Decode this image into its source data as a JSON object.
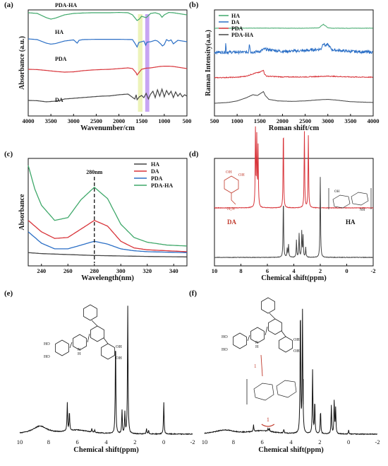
{
  "figure": {
    "panels": [
      "(a)",
      "(b)",
      "(c)",
      "(d)",
      "(e)",
      "(f)"
    ]
  },
  "chart_data": [
    {
      "id": "a",
      "panel_label": "(a)",
      "type": "line",
      "xlabel": "Wavenumber/cm",
      "ylabel": "Absorbance (a.u.)",
      "xlim": [
        4000,
        500
      ],
      "xticks": [
        4000,
        3500,
        3000,
        2500,
        2000,
        1500,
        1000,
        500
      ],
      "highlight_bands": [
        {
          "from": 1580,
          "to": 1480,
          "color": "#e8f0a8"
        },
        {
          "from": 1420,
          "to": 1330,
          "color": "#b98ef0"
        }
      ],
      "series": [
        {
          "name": "PDA-HA",
          "color": "#3fa86a",
          "offset": 3.0,
          "x": [
            4000,
            3800,
            3600,
            3500,
            3400,
            3200,
            3000,
            2800,
            2600,
            2400,
            2200,
            2000,
            1800,
            1700,
            1650,
            1600,
            1550,
            1500,
            1450,
            1400,
            1300,
            1200,
            1100,
            1050,
            1000,
            900,
            800,
            700,
            600,
            500
          ],
          "y": [
            0.6,
            0.55,
            0.25,
            0.15,
            0.22,
            0.45,
            0.55,
            0.58,
            0.6,
            0.6,
            0.6,
            0.62,
            0.6,
            0.45,
            0.25,
            0.05,
            0.15,
            0.35,
            0.3,
            0.25,
            0.55,
            0.6,
            0.5,
            0.28,
            0.45,
            0.62,
            0.6,
            0.55,
            0.5,
            0.45
          ]
        },
        {
          "name": "HA",
          "color": "#2b6fc6",
          "offset": 2.0,
          "x": [
            4000,
            3800,
            3600,
            3500,
            3400,
            3200,
            3000,
            2920,
            2880,
            2800,
            2500,
            2000,
            1700,
            1640,
            1600,
            1560,
            1500,
            1450,
            1410,
            1380,
            1300,
            1200,
            1150,
            1080,
            1040,
            1000,
            950,
            900,
            850,
            800,
            700,
            600,
            500
          ],
          "y": [
            0.65,
            0.6,
            0.35,
            0.28,
            0.32,
            0.5,
            0.58,
            0.35,
            0.55,
            0.6,
            0.62,
            0.62,
            0.6,
            0.3,
            0.08,
            0.4,
            0.45,
            0.5,
            0.2,
            0.42,
            0.45,
            0.55,
            0.5,
            0.3,
            0.15,
            0.25,
            0.6,
            0.5,
            0.58,
            0.3,
            0.55,
            0.5,
            0.45
          ]
        },
        {
          "name": "PDA",
          "color": "#d8343a",
          "offset": 1.0,
          "x": [
            4000,
            3800,
            3600,
            3400,
            3200,
            3000,
            2800,
            2600,
            2400,
            2200,
            2000,
            1800,
            1700,
            1620,
            1600,
            1550,
            1500,
            1400,
            1300,
            1200,
            1100,
            1000,
            900,
            800,
            700,
            600,
            500
          ],
          "y": [
            0.4,
            0.38,
            0.32,
            0.25,
            0.2,
            0.22,
            0.3,
            0.35,
            0.38,
            0.4,
            0.45,
            0.5,
            0.45,
            0.15,
            0.0,
            0.2,
            0.4,
            0.48,
            0.5,
            0.55,
            0.6,
            0.62,
            0.62,
            0.6,
            0.55,
            0.5,
            0.45
          ]
        },
        {
          "name": "DA",
          "color": "#444444",
          "offset": 0.0,
          "x": [
            4000,
            3800,
            3600,
            3400,
            3300,
            3200,
            3000,
            2800,
            2600,
            2400,
            2200,
            2000,
            1800,
            1650,
            1620,
            1600,
            1550,
            1500,
            1450,
            1400,
            1350,
            1300,
            1250,
            1200,
            1150,
            1100,
            1050,
            1000,
            950,
            900,
            850,
            800,
            750,
            700,
            650,
            600,
            550,
            500
          ],
          "y": [
            0.1,
            0.08,
            0.0,
            0.05,
            0.1,
            0.2,
            0.25,
            0.3,
            0.35,
            0.4,
            0.42,
            0.5,
            0.55,
            0.2,
            0.5,
            0.15,
            0.35,
            0.45,
            0.3,
            0.6,
            0.2,
            0.55,
            0.75,
            0.3,
            0.85,
            0.4,
            0.9,
            0.35,
            0.8,
            0.5,
            0.75,
            0.3,
            0.7,
            0.4,
            0.6,
            0.35,
            0.5,
            0.4
          ]
        }
      ],
      "series_labels": [
        "PDA-HA",
        "HA",
        "PDA",
        "DA"
      ]
    },
    {
      "id": "b",
      "panel_label": "(b)",
      "type": "line",
      "xlabel": "Roman shift/cm",
      "ylabel": "Raman Intensity(a.u.)",
      "xlim": [
        500,
        4000
      ],
      "xticks": [
        500,
        1000,
        1500,
        2000,
        2500,
        3000,
        3500,
        4000
      ],
      "legend": {
        "placement": "top-left",
        "entries": [
          "HA",
          "DA",
          "PDA",
          "PDA-HA"
        ]
      },
      "series": [
        {
          "name": "HA",
          "color": "#3fa86a",
          "offset": 3.0,
          "noise": 0.02,
          "x": [
            500,
            1000,
            1500,
            2000,
            2500,
            2800,
            2900,
            2950,
            3000,
            3100,
            3500,
            4000
          ],
          "y": [
            0.05,
            0.05,
            0.06,
            0.05,
            0.05,
            0.07,
            0.3,
            0.2,
            0.08,
            0.05,
            0.05,
            0.05
          ]
        },
        {
          "name": "DA",
          "color": "#2b6fc6",
          "offset": 2.0,
          "noise": 0.18,
          "x": [
            500,
            740,
            750,
            760,
            1000,
            1250,
            1270,
            1300,
            1500,
            1600,
            2000,
            2500,
            2850,
            2900,
            2950,
            3000,
            3050,
            3100,
            3500,
            4000
          ],
          "y": [
            0.1,
            0.1,
            0.8,
            0.1,
            0.1,
            0.1,
            0.7,
            0.1,
            0.15,
            0.3,
            0.15,
            0.2,
            0.3,
            0.7,
            0.5,
            0.6,
            0.4,
            0.25,
            0.15,
            0.1
          ]
        },
        {
          "name": "PDA",
          "color": "#d8343a",
          "offset": 1.0,
          "noise": 0.05,
          "x": [
            500,
            1000,
            1200,
            1350,
            1400,
            1500,
            1580,
            1600,
            1650,
            2000,
            2500,
            3000,
            3500,
            4000
          ],
          "y": [
            0.05,
            0.08,
            0.15,
            0.3,
            0.35,
            0.4,
            0.55,
            0.3,
            0.15,
            0.1,
            0.1,
            0.15,
            0.1,
            0.08
          ]
        },
        {
          "name": "PDA-HA",
          "color": "#444444",
          "offset": 0.0,
          "noise": 0.01,
          "x": [
            500,
            800,
            1000,
            1200,
            1350,
            1400,
            1450,
            1500,
            1580,
            1620,
            1700,
            1900,
            2200,
            2500,
            2800,
            3000,
            3200,
            3500,
            4000
          ],
          "y": [
            0.0,
            0.05,
            0.15,
            0.35,
            0.55,
            0.52,
            0.5,
            0.6,
            0.75,
            0.5,
            0.25,
            0.15,
            0.12,
            0.15,
            0.22,
            0.25,
            0.2,
            0.1,
            0.05
          ]
        }
      ]
    },
    {
      "id": "c",
      "panel_label": "(c)",
      "type": "line",
      "xlabel": "Wavelength(nm)",
      "ylabel": "Absorbance",
      "xlim": [
        230,
        350
      ],
      "xticks": [
        240,
        260,
        280,
        300,
        320,
        340
      ],
      "annotation": "280nm",
      "annotation_x": 280,
      "legend": {
        "placement": "top-right",
        "entries": [
          "HA",
          "DA",
          "PDA",
          "PDA-HA"
        ]
      },
      "series": [
        {
          "name": "HA",
          "color": "#444444",
          "x": [
            230,
            240,
            260,
            280,
            300,
            320,
            350
          ],
          "y": [
            0.08,
            0.07,
            0.06,
            0.05,
            0.045,
            0.04,
            0.035
          ]
        },
        {
          "name": "DA",
          "color": "#d8343a",
          "x": [
            230,
            240,
            250,
            260,
            270,
            280,
            290,
            300,
            310,
            320,
            335,
            350
          ],
          "y": [
            0.42,
            0.3,
            0.23,
            0.24,
            0.33,
            0.42,
            0.36,
            0.2,
            0.13,
            0.11,
            0.1,
            0.09
          ]
        },
        {
          "name": "PDA",
          "color": "#2b6fc6",
          "x": [
            230,
            240,
            250,
            260,
            270,
            280,
            290,
            300,
            310,
            320,
            335,
            350
          ],
          "y": [
            0.3,
            0.18,
            0.12,
            0.12,
            0.16,
            0.2,
            0.17,
            0.12,
            0.1,
            0.09,
            0.085,
            0.08
          ]
        },
        {
          "name": "PDA-HA",
          "color": "#3fa86a",
          "x": [
            230,
            235,
            240,
            250,
            260,
            270,
            280,
            290,
            300,
            310,
            320,
            335,
            350
          ],
          "y": [
            1.0,
            0.75,
            0.58,
            0.42,
            0.45,
            0.64,
            0.77,
            0.65,
            0.38,
            0.24,
            0.19,
            0.16,
            0.15
          ]
        }
      ]
    },
    {
      "id": "d",
      "panel_label": "(d)",
      "type": "line",
      "xlabel": "Chemical shift(ppm)",
      "xlim": [
        10,
        -2
      ],
      "xticks": [
        10,
        8,
        6,
        4,
        2,
        0,
        -2
      ],
      "compound_labels": [
        "DA",
        "HA"
      ],
      "series": [
        {
          "name": "DA",
          "color": "#d8343a",
          "offset": 1.0,
          "peaks": [
            [
              6.9,
              0.9
            ],
            [
              6.8,
              0.8
            ],
            [
              6.7,
              0.7
            ],
            [
              4.79,
              0.95
            ],
            [
              3.2,
              0.9
            ],
            [
              2.9,
              0.85
            ]
          ]
        },
        {
          "name": "HA",
          "color": "#444444",
          "offset": 0.0,
          "peaks": [
            [
              4.79,
              0.7
            ],
            [
              4.5,
              0.1
            ],
            [
              4.4,
              0.15
            ],
            [
              3.8,
              0.2
            ],
            [
              3.6,
              0.28
            ],
            [
              3.4,
              0.3
            ],
            [
              3.3,
              0.25
            ],
            [
              3.1,
              0.12
            ],
            [
              2.0,
              0.95
            ]
          ]
        }
      ]
    },
    {
      "id": "e",
      "panel_label": "(e)",
      "type": "line",
      "xlabel": "Chemical shift(ppm)",
      "xlim": [
        10,
        -2
      ],
      "xticks": [
        10,
        8,
        6,
        4,
        2,
        0,
        -2
      ],
      "series": [
        {
          "name": "",
          "color": "#111111",
          "broad": [
            [
              8.6,
              0.06,
              0.6
            ],
            [
              6.0,
              0.03,
              1.0
            ]
          ],
          "peaks": [
            [
              6.7,
              0.22
            ],
            [
              6.55,
              0.15
            ],
            [
              5.0,
              0.03
            ],
            [
              4.8,
              0.02
            ],
            [
              3.35,
              0.75
            ],
            [
              2.9,
              0.18
            ],
            [
              2.7,
              0.16
            ],
            [
              2.5,
              1.0
            ],
            [
              1.2,
              0.04
            ],
            [
              1.05,
              0.03
            ],
            [
              0.0,
              0.25
            ]
          ]
        }
      ]
    },
    {
      "id": "f",
      "panel_label": "(f)",
      "type": "line",
      "xlabel": "Chemical shift(ppm)",
      "xlim": [
        10,
        -2
      ],
      "xticks": [
        10,
        8,
        6,
        4,
        2,
        0,
        -2
      ],
      "annotation": "1",
      "annotation_x": 5.6,
      "series": [
        {
          "name": "",
          "color": "#111111",
          "broad": [
            [
              8.6,
              0.03,
              0.8
            ],
            [
              6.0,
              0.025,
              1.0
            ]
          ],
          "peaks": [
            [
              6.6,
              0.05
            ],
            [
              5.6,
              0.02
            ],
            [
              5.5,
              0.025
            ],
            [
              4.5,
              0.03
            ],
            [
              3.35,
              1.0
            ],
            [
              3.2,
              0.95
            ],
            [
              2.5,
              0.5
            ],
            [
              2.35,
              0.25
            ],
            [
              1.95,
              0.18
            ],
            [
              1.2,
              0.22
            ],
            [
              1.0,
              0.25
            ],
            [
              0.9,
              0.2
            ],
            [
              0.0,
              0.03
            ]
          ]
        }
      ]
    }
  ]
}
